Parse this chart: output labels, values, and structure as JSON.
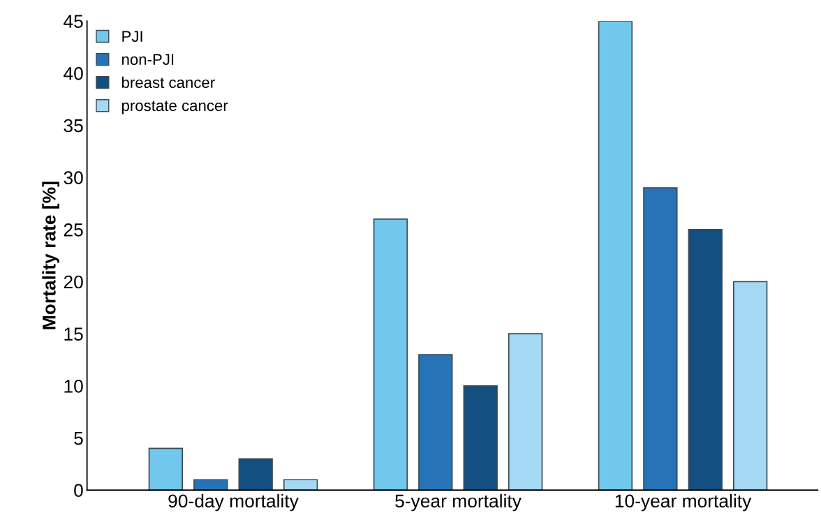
{
  "chart_data": {
    "type": "bar",
    "ylabel": "Mortality rate [%]",
    "categories": [
      "90-day mortality",
      "5-year mortality",
      "10-year mortality"
    ],
    "series": [
      {
        "name": "PJI",
        "color": "#72c7ec",
        "values": [
          4,
          26,
          45
        ]
      },
      {
        "name": "non-PJI",
        "color": "#2673b8",
        "values": [
          1,
          13,
          29
        ]
      },
      {
        "name": "breast cancer",
        "color": "#134f80",
        "values": [
          3,
          10,
          25
        ]
      },
      {
        "name": "prostate cancer",
        "color": "#a4d9f3",
        "values": [
          1,
          15,
          20
        ]
      }
    ],
    "ylim": [
      0,
      45
    ],
    "yticks": [
      0,
      5,
      10,
      15,
      20,
      25,
      30,
      35,
      40,
      45
    ],
    "grid": false,
    "legend": "top left"
  }
}
